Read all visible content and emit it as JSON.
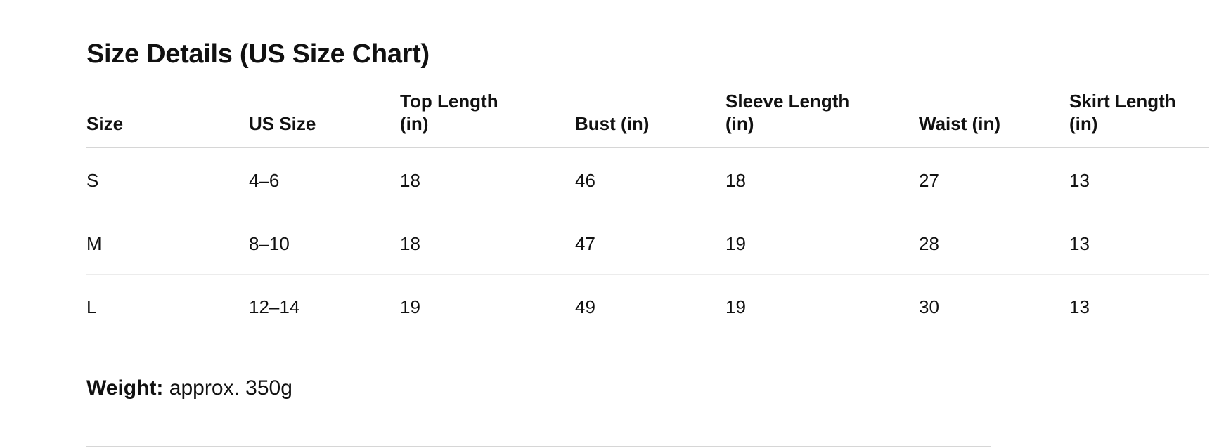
{
  "title": "Size Details (US Size Chart)",
  "table": {
    "headers": [
      [
        "Size",
        ""
      ],
      [
        "US Size",
        ""
      ],
      [
        "Top Length",
        "(in)"
      ],
      [
        "Bust (in)",
        ""
      ],
      [
        "Sleeve Length",
        "(in)"
      ],
      [
        "Waist (in)",
        ""
      ],
      [
        "Skirt Length",
        "(in)"
      ]
    ],
    "rows": [
      [
        "S",
        "4–6",
        "18",
        "46",
        "18",
        "27",
        "13"
      ],
      [
        "M",
        "8–10",
        "18",
        "47",
        "19",
        "28",
        "13"
      ],
      [
        "L",
        "12–14",
        "19",
        "49",
        "19",
        "30",
        "13"
      ]
    ]
  },
  "weight": {
    "label": "Weight:",
    "value": " approx. 350g"
  }
}
